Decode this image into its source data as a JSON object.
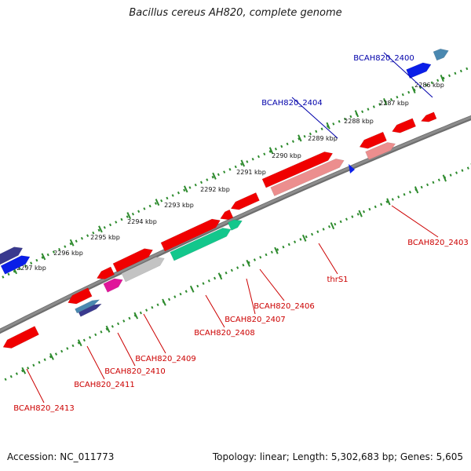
{
  "title": "Bacillus cereus AH820, complete genome",
  "accession_text": "Accession: NC_011773",
  "summary_text": "Topology: linear; Length: 5,302,683 bp; Genes: 5,605",
  "colors": {
    "backbone": "#8c8c8c",
    "tick_track": "#2e8b2e",
    "callout_red": "#cc0000",
    "callout_blue": "#0000aa",
    "gene_red": "#f00000",
    "gene_pink": "#ec8e8e",
    "gene_blue": "#0a1ee8",
    "gene_navy": "#3a3a8e",
    "gene_steel": "#4a88b0",
    "gene_teal": "#13c78c",
    "gene_grey": "#c3c3c3",
    "gene_magenta": "#e0169a"
  },
  "ticks": [
    "2286 kbp",
    "2287 kbp",
    "2288 kbp",
    "2289 kbp",
    "2290 kbp",
    "2291 kbp",
    "2292 kbp",
    "2293 kbp",
    "2294 kbp",
    "2295 kbp",
    "2296 kbp",
    "2297 kbp"
  ],
  "gene_labels": [
    "BCAH820_2400",
    "BCAH820_2404",
    "BCAH820_2403",
    "thrS1",
    "BCAH820_2406",
    "BCAH820_2407",
    "BCAH820_2408",
    "BCAH820_2409",
    "BCAH820_2410",
    "BCAH820_2411",
    "BCAH820_2413"
  ]
}
